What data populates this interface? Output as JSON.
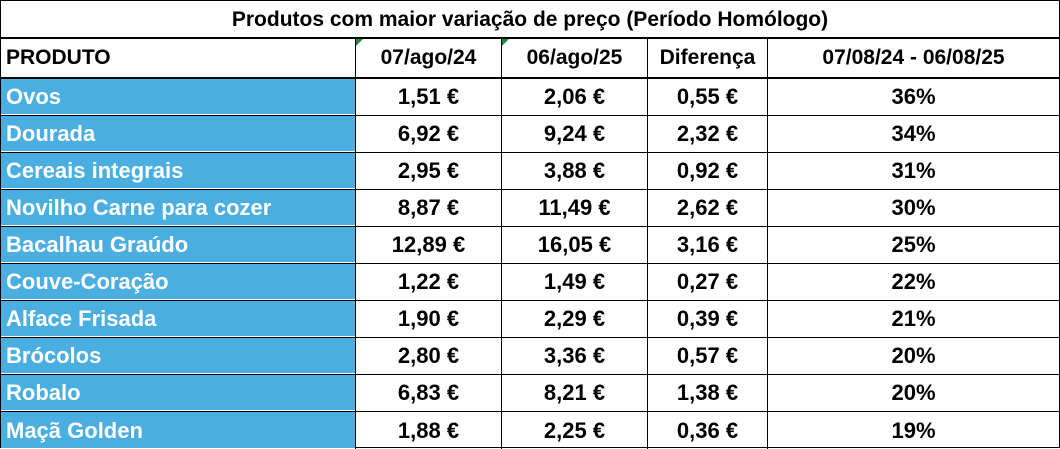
{
  "chart_data": {
    "type": "table",
    "title": "Produtos com maior variação de preço (Período Homólogo)",
    "columns": [
      "PRODUTO",
      "07/ago/24",
      "06/ago/25",
      "Diferença",
      "07/08/24 - 06/08/25"
    ],
    "rows": [
      [
        "Ovos",
        "1,51 €",
        "2,06 €",
        "0,55 €",
        "36%"
      ],
      [
        "Dourada",
        "6,92 €",
        "9,24 €",
        "2,32 €",
        "34%"
      ],
      [
        "Cereais integrais",
        "2,95 €",
        "3,88 €",
        "0,92 €",
        "31%"
      ],
      [
        "Novilho Carne para cozer",
        "8,87 €",
        "11,49 €",
        "2,62 €",
        "30%"
      ],
      [
        "Bacalhau Graúdo",
        "12,89 €",
        "16,05 €",
        "3,16 €",
        "25%"
      ],
      [
        "Couve-Coração",
        "1,22 €",
        "1,49 €",
        "0,27 €",
        "22%"
      ],
      [
        "Alface Frisada",
        "1,90 €",
        "2,29 €",
        "0,39 €",
        "21%"
      ],
      [
        "Brócolos",
        "2,80 €",
        "3,36 €",
        "0,57 €",
        "20%"
      ],
      [
        "Robalo",
        "6,83 €",
        "8,21 €",
        "1,38 €",
        "20%"
      ],
      [
        "Maçã Golden",
        "1,88 €",
        "2,25 €",
        "0,36 €",
        "19%"
      ]
    ],
    "colors": {
      "product_cell_bg": "#4aafe0",
      "product_text": "#ffffff",
      "comment_marker": "#1e8c3a"
    }
  }
}
